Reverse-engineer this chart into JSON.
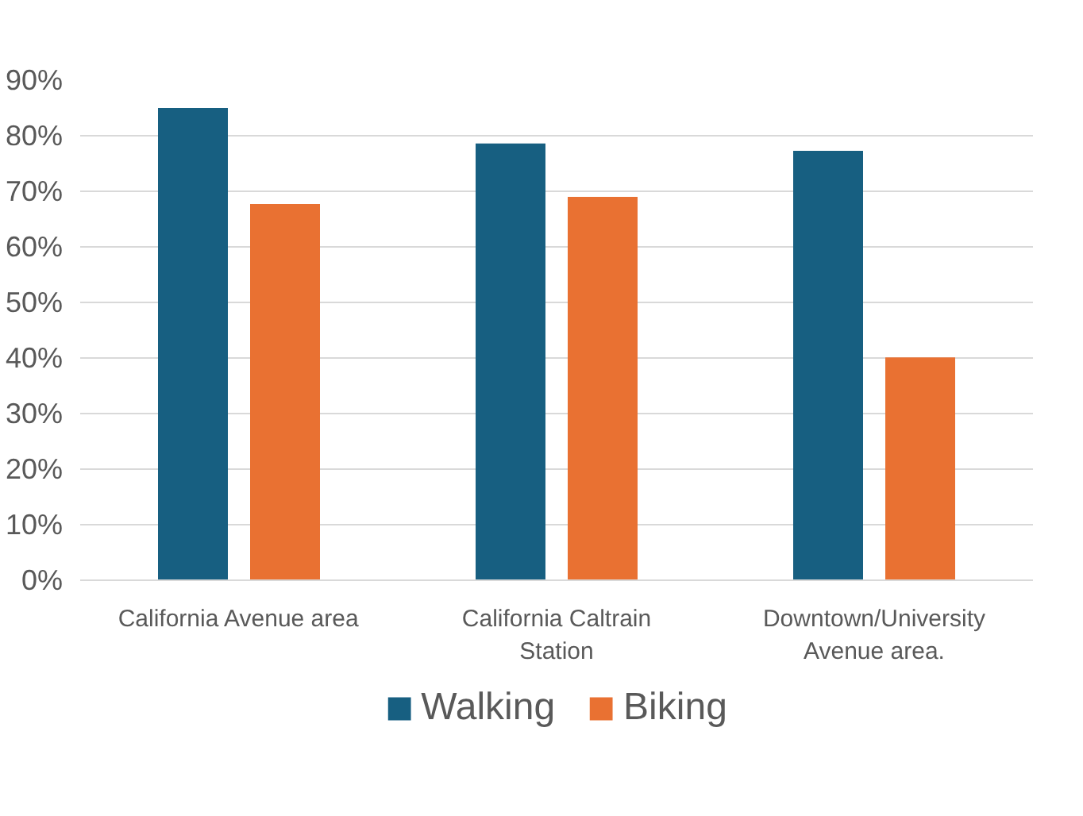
{
  "chart_data": {
    "type": "bar",
    "categories": [
      "California Avenue area",
      "California Caltrain Station",
      "Downtown/University Avenue area."
    ],
    "series": [
      {
        "name": "Walking",
        "color": "#175f81",
        "values": [
          85,
          78.6,
          77.3
        ]
      },
      {
        "name": "Biking",
        "color": "#e97132",
        "values": [
          67.7,
          69,
          40.1
        ]
      }
    ],
    "ylim": [
      0,
      90
    ],
    "yticks": [
      {
        "value": 0,
        "label": "0%"
      },
      {
        "value": 10,
        "label": "10%"
      },
      {
        "value": 20,
        "label": "20%"
      },
      {
        "value": 30,
        "label": "30%"
      },
      {
        "value": 40,
        "label": "40%"
      },
      {
        "value": 50,
        "label": "50%"
      },
      {
        "value": 60,
        "label": "60%"
      },
      {
        "value": 70,
        "label": "70%"
      },
      {
        "value": 80,
        "label": "80%"
      },
      {
        "value": 90,
        "label": "90%"
      }
    ],
    "grid": "y",
    "legend": "bottom"
  }
}
